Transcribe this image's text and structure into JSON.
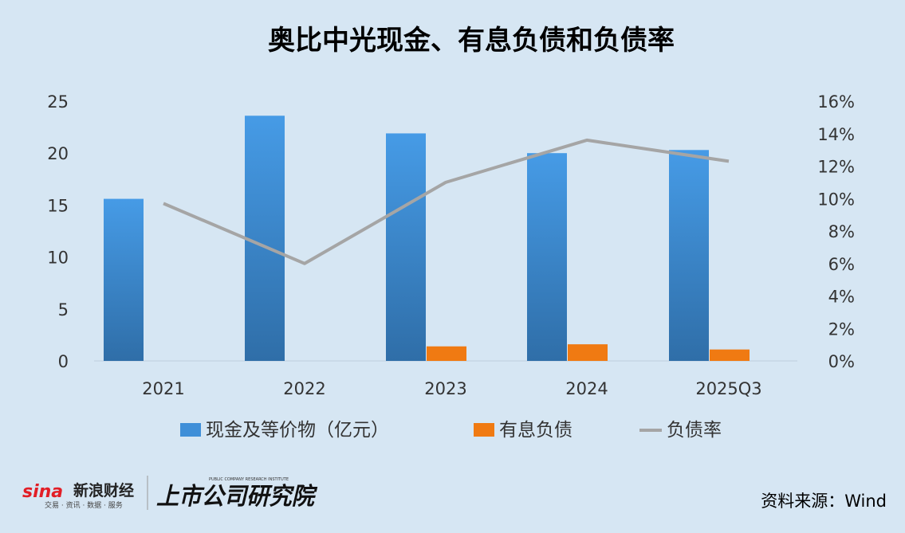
{
  "chart_data": {
    "type": "bar+line",
    "title": "奥比中光现金、有息负债和负债率",
    "categories": [
      "2021",
      "2022",
      "2023",
      "2024",
      "2025Q3"
    ],
    "series": [
      {
        "name": "现金及等价物（亿元）",
        "type": "bar",
        "axis": "left",
        "color": "#3f8fd8",
        "values": [
          15.6,
          23.6,
          21.9,
          20.0,
          20.3
        ]
      },
      {
        "name": "有息负债",
        "type": "bar",
        "axis": "left",
        "color": "#f07a12",
        "values": [
          0,
          0,
          1.4,
          1.6,
          1.1
        ]
      },
      {
        "name": "负债率",
        "type": "line",
        "axis": "right",
        "color": "#a5a5a5",
        "values": [
          9.7,
          6.0,
          11.0,
          13.6,
          12.3
        ]
      }
    ],
    "y_left": {
      "min": 0,
      "max": 25,
      "ticks": [
        "0",
        "5",
        "10",
        "15",
        "20",
        "25"
      ]
    },
    "y_right": {
      "min": 0,
      "max": 16,
      "ticks": [
        "0%",
        "2%",
        "4%",
        "6%",
        "8%",
        "10%",
        "12%",
        "14%",
        "16%"
      ]
    },
    "grid": false,
    "legend": "bottom"
  },
  "source": "资料来源：Wind",
  "logos": {
    "sina_brand": "sina",
    "sina_name": "新浪财经",
    "sina_tagline": "交易 · 资讯 · 数据 · 服务",
    "institute_name": "上市公司研究院",
    "institute_en": "PUBLIC COMPANY RESEARCH INSTITUTE"
  }
}
